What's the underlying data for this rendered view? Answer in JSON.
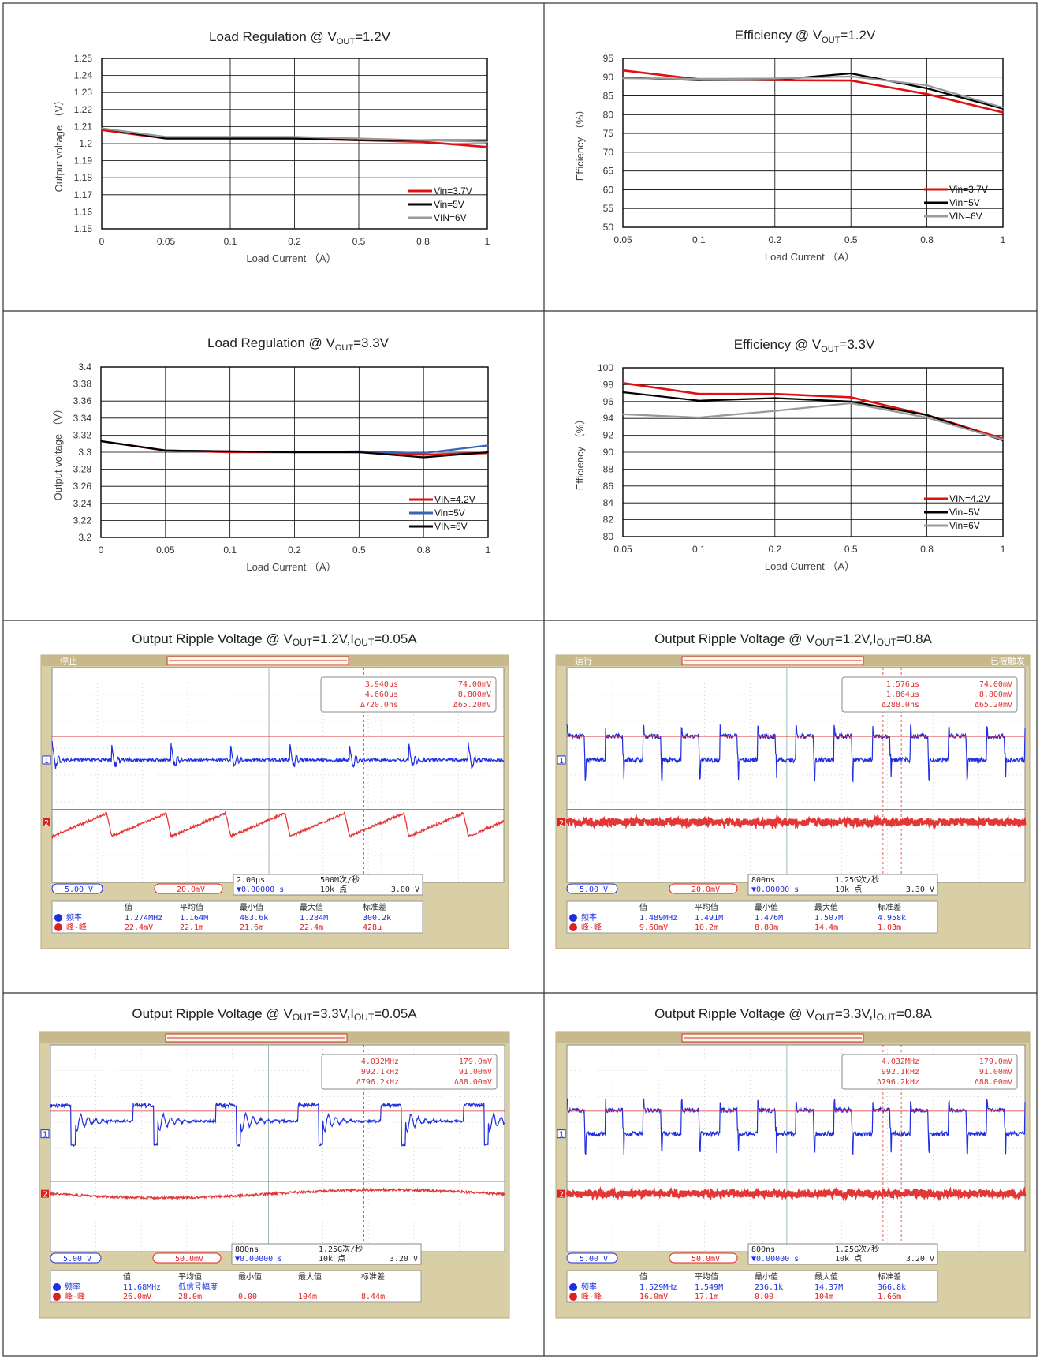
{
  "chart_data": [
    {
      "type": "line",
      "title": "Load Regulation @ V",
      "title_sub": "OUT",
      "title_tail": "=1.2V",
      "xlabel": "Load Current （A）",
      "ylabel": "Output voltage （V）",
      "categories": [
        "0",
        "0.05",
        "0.1",
        "0.2",
        "0.5",
        "0.8",
        "1"
      ],
      "ylim": [
        1.15,
        1.25
      ],
      "yticks": [
        "1.25",
        "1.24",
        "1.23",
        "1.22",
        "1.21",
        "1.2",
        "1.19",
        "1.18",
        "1.17",
        "1.16",
        "1.15"
      ],
      "legend_position": "bottom-right",
      "series": [
        {
          "name": "Vin=3.7V",
          "color": "#e01010",
          "values": [
            1.208,
            1.203,
            1.203,
            1.203,
            1.202,
            1.201,
            1.198
          ]
        },
        {
          "name": "Vin=5V",
          "color": "#000000",
          "values": [
            1.209,
            1.203,
            1.203,
            1.203,
            1.202,
            1.202,
            1.202
          ]
        },
        {
          "name": "VIN=6V",
          "color": "#999999",
          "values": [
            1.209,
            1.204,
            1.204,
            1.204,
            1.203,
            1.202,
            1.201
          ]
        }
      ]
    },
    {
      "type": "line",
      "title": "Efficiency @ V",
      "title_sub": "OUT",
      "title_tail": "=1.2V",
      "xlabel": "Load Current （A）",
      "ylabel": "Efficiency （%）",
      "categories": [
        "0.05",
        "0.1",
        "0.2",
        "0.5",
        "0.8",
        "1"
      ],
      "ylim": [
        50,
        95
      ],
      "yticks": [
        "95",
        "90",
        "85",
        "80",
        "75",
        "70",
        "65",
        "60",
        "55",
        "50"
      ],
      "legend_position": "bottom-right",
      "series": [
        {
          "name": "Vin=3.7V",
          "color": "#e01010",
          "values": [
            91.8,
            89.4,
            89.2,
            89.1,
            85.5,
            80.6
          ]
        },
        {
          "name": "Vin=5V",
          "color": "#000000",
          "values": [
            89.9,
            89.2,
            89.3,
            91.0,
            87.0,
            81.6
          ]
        },
        {
          "name": "VIN=6V",
          "color": "#999999",
          "values": [
            89.7,
            89.5,
            89.6,
            90.2,
            87.8,
            81.9
          ]
        }
      ]
    },
    {
      "type": "line",
      "title": "Load Regulation @ V",
      "title_sub": "OUT",
      "title_tail": "=3.3V",
      "xlabel": "Load Current （A）",
      "ylabel": "Output voltage （V）",
      "categories": [
        "0",
        "0.05",
        "0.1",
        "0.2",
        "0.5",
        "0.8",
        "1"
      ],
      "ylim": [
        3.2,
        3.4
      ],
      "yticks": [
        "3.4",
        "3.38",
        "3.36",
        "3.34",
        "3.32",
        "3.3",
        "3.28",
        "3.26",
        "3.24",
        "3.22",
        "3.2"
      ],
      "legend_position": "bottom-right",
      "series": [
        {
          "name": "VIN=4.2V",
          "color": "#e01010",
          "values": [
            3.313,
            3.302,
            3.3,
            3.3,
            3.3,
            3.297,
            3.299
          ]
        },
        {
          "name": "Vin=5V",
          "color": "#3b63b5",
          "values": [
            3.313,
            3.302,
            3.301,
            3.3,
            3.301,
            3.299,
            3.308
          ]
        },
        {
          "name": "VIN=6V",
          "color": "#000000",
          "values": [
            3.313,
            3.302,
            3.301,
            3.3,
            3.3,
            3.294,
            3.3
          ]
        }
      ]
    },
    {
      "type": "line",
      "title": "Efficiency @ V",
      "title_sub": "OUT",
      "title_tail": "=3.3V",
      "xlabel": "Load Current （A）",
      "ylabel": "Efficiency （%）",
      "categories": [
        "0.05",
        "0.1",
        "0.2",
        "0.5",
        "0.8",
        "1"
      ],
      "ylim": [
        80,
        100
      ],
      "yticks": [
        "100",
        "98",
        "96",
        "94",
        "92",
        "90",
        "88",
        "86",
        "84",
        "82",
        "80"
      ],
      "legend_position": "bottom-right",
      "series": [
        {
          "name": "VIN=4.2V",
          "color": "#e01010",
          "values": [
            98.2,
            96.9,
            96.9,
            96.5,
            94.4,
            91.6
          ]
        },
        {
          "name": "Vin=5V",
          "color": "#000000",
          "values": [
            97.1,
            96.1,
            96.4,
            96.0,
            94.4,
            91.4
          ]
        },
        {
          "name": "Vin=6V",
          "color": "#999999",
          "values": [
            94.5,
            94.1,
            94.9,
            95.8,
            94.1,
            91.5
          ]
        }
      ]
    }
  ],
  "scopes": [
    {
      "title": "Output Ripple Voltage @ V",
      "title_parts": [
        "OUT",
        "=1.2V,I",
        "OUT",
        "=0.05A"
      ],
      "state": "停止",
      "header_right": "",
      "ch1_wave": "buck-low",
      "ch2_wave": "saw",
      "cursor_box": [
        "3.940μs",
        "74.00mV",
        "4.660μs",
        "8.800mV",
        "Δ720.0ns",
        "Δ65.20mV"
      ],
      "ch1_scale": "5.00 V",
      "ch2_scale": "20.0mV",
      "timebase": "2.00μs",
      "offset": "▼0.00000 s",
      "rate": "500M次/秒",
      "points": "10k 点",
      "trig": "3.00 V",
      "meas_headers": [
        "值",
        "平均值",
        "最小值",
        "最大值",
        "标准差"
      ],
      "meas_ch1": [
        "频率",
        "1.274MHz",
        "1.164M",
        "483.6k",
        "1.284M",
        "300.2k"
      ],
      "meas_ch2": [
        "峰-峰",
        "22.4mV",
        "22.1m",
        "21.6m",
        "22.4m",
        "428μ"
      ]
    },
    {
      "title": "Output Ripple Voltage @ V",
      "title_parts": [
        "OUT",
        "=1.2V,I",
        "OUT",
        "=0.8A"
      ],
      "state": "运行",
      "header_right": "已被触发",
      "ch1_wave": "square",
      "ch2_wave": "band",
      "cursor_box": [
        "1.576μs",
        "74.00mV",
        "1.864μs",
        "8.800mV",
        "Δ288.0ns",
        "Δ65.20mV"
      ],
      "ch1_scale": "5.00 V",
      "ch2_scale": "20.0mV",
      "timebase": "800ns",
      "offset": "▼0.00000 s",
      "rate": "1.25G次/秒",
      "points": "10k 点",
      "trig": "3.30 V",
      "meas_headers": [
        "值",
        "平均值",
        "最小值",
        "最大值",
        "标准差"
      ],
      "meas_ch1": [
        "频率",
        "1.489MHz",
        "1.491M",
        "1.476M",
        "1.507M",
        "4.958k"
      ],
      "meas_ch2": [
        "峰-峰",
        "9.60mV",
        "10.2m",
        "8.80m",
        "14.4m",
        "1.03m"
      ]
    },
    {
      "title": "Output Ripple Voltage @ V",
      "title_parts": [
        "OUT",
        "=3.3V,I",
        "OUT",
        "=0.05A"
      ],
      "state": "",
      "header_right": "",
      "ch1_wave": "buck-high",
      "ch2_wave": "wobble",
      "cursor_box": [
        "4.032MHz",
        "179.0mV",
        "992.1kHz",
        "91.00mV",
        "Δ796.2kHz",
        "Δ88.00mV"
      ],
      "ch1_scale": "5.00 V",
      "ch2_scale": "50.0mV",
      "timebase": "800ns",
      "offset": "▼0.00000 s",
      "rate": "1.25G次/秒",
      "points": "10k 点",
      "trig": "3.20 V",
      "meas_headers": [
        "值",
        "平均值",
        "最小值",
        "最大值",
        "标准差"
      ],
      "meas_ch1": [
        "频率",
        "11.68MHz",
        "低信号幅度",
        "",
        "",
        ""
      ],
      "meas_ch2": [
        "峰-峰",
        "26.0mV",
        "28.0m",
        "0.00",
        "104m",
        "8.44m"
      ]
    },
    {
      "title": "Output Ripple Voltage @ V",
      "title_parts": [
        "OUT",
        "=3.3V,I",
        "OUT",
        "=0.8A"
      ],
      "state": "",
      "header_right": "",
      "ch1_wave": "square",
      "ch2_wave": "band",
      "cursor_box": [
        "4.032MHz",
        "179.0mV",
        "992.1kHz",
        "91.00mV",
        "Δ796.2kHz",
        "Δ88.00mV"
      ],
      "ch1_scale": "5.00 V",
      "ch2_scale": "50.0mV",
      "timebase": "800ns",
      "offset": "▼0.00000 s",
      "rate": "1.25G次/秒",
      "points": "10k 点",
      "trig": "3.20 V",
      "meas_headers": [
        "值",
        "平均值",
        "最小值",
        "最大值",
        "标准差"
      ],
      "meas_ch1": [
        "频率",
        "1.529MHz",
        "1.549M",
        "236.1k",
        "14.37M",
        "366.8k"
      ],
      "meas_ch2": [
        "峰-峰",
        "16.0mV",
        "17.1m",
        "0.00",
        "104m",
        "1.66m"
      ]
    }
  ],
  "colors": {
    "grid_line": "#000000",
    "scope_bg": "#ffffff",
    "scope_frame": "#c8b98a",
    "ch1": "#1f2ee0",
    "ch2": "#e02020"
  }
}
